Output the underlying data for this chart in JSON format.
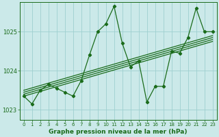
{
  "bg_color": "#cbe9e9",
  "plot_bg_color": "#cbe9e9",
  "line_color": "#1a6b1a",
  "grid_color": "#9ecfcf",
  "text_color": "#1a6b1a",
  "xlim": [
    -0.5,
    23.5
  ],
  "ylim": [
    1022.75,
    1025.75
  ],
  "yticks": [
    1023,
    1024,
    1025
  ],
  "xticks": [
    0,
    1,
    2,
    3,
    4,
    5,
    6,
    7,
    8,
    9,
    10,
    11,
    12,
    13,
    14,
    15,
    16,
    17,
    18,
    19,
    20,
    21,
    22,
    23
  ],
  "xlabel": "Graphe pression niveau de la mer (hPa)",
  "main_x": [
    0,
    1,
    2,
    3,
    4,
    5,
    6,
    7,
    8,
    9,
    10,
    11,
    12,
    13,
    14,
    15,
    16,
    17,
    18,
    19,
    20,
    21,
    22,
    23
  ],
  "main_y": [
    1023.35,
    1023.15,
    1023.5,
    1023.65,
    1023.55,
    1023.45,
    1023.35,
    1023.75,
    1024.4,
    1025.0,
    1025.2,
    1025.65,
    1024.7,
    1024.1,
    1024.25,
    1023.2,
    1023.6,
    1023.6,
    1024.5,
    1024.45,
    1024.85,
    1025.6,
    1025.0,
    1025.0
  ],
  "trend_lines": [
    {
      "x": [
        0,
        23
      ],
      "y": [
        1023.35,
        1024.75
      ]
    },
    {
      "x": [
        0,
        23
      ],
      "y": [
        1023.4,
        1024.8
      ]
    },
    {
      "x": [
        0,
        23
      ],
      "y": [
        1023.45,
        1024.85
      ]
    },
    {
      "x": [
        0,
        23
      ],
      "y": [
        1023.5,
        1024.9
      ]
    }
  ],
  "marker": "D",
  "markersize": 2.2,
  "linewidth": 0.9,
  "xlabel_fontsize": 6.5,
  "ytick_fontsize": 6.0,
  "xtick_fontsize": 5.0
}
